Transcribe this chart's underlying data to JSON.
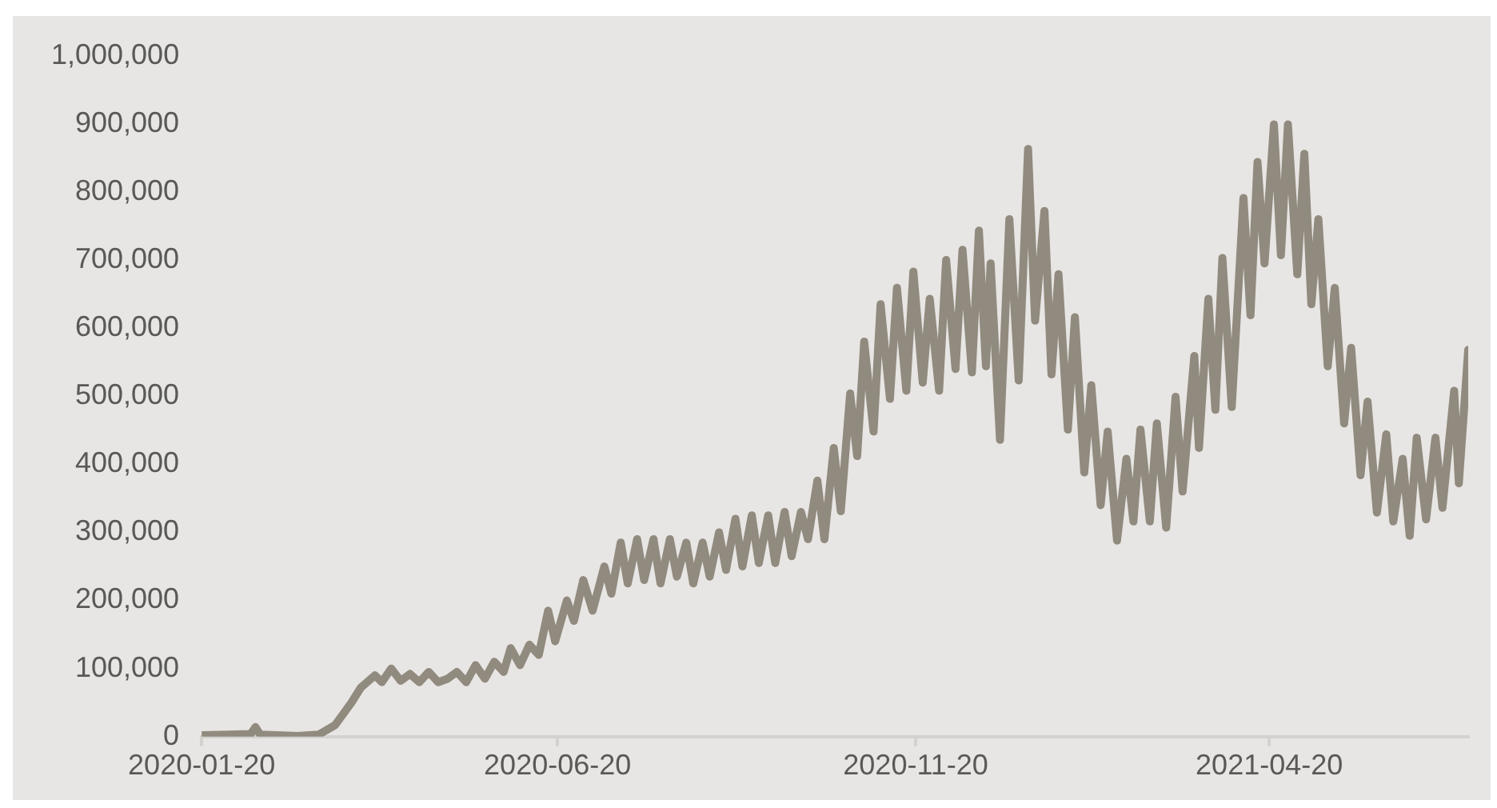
{
  "chart_data": {
    "type": "line",
    "color": "#918a7e",
    "marker": "none",
    "line_style": "solid",
    "legend": false,
    "grid": false,
    "xlim": [
      "2020-01-20",
      "2021-07-14"
    ],
    "xticks": [
      "2020-01-20",
      "2020-06-20",
      "2020-11-20",
      "2021-04-20"
    ],
    "ylim": [
      0,
      1000000
    ],
    "yticks": [
      {
        "value": 0,
        "label": "0"
      },
      {
        "value": 100000,
        "label": "100,000"
      },
      {
        "value": 200000,
        "label": "200,000"
      },
      {
        "value": 300000,
        "label": "300,000"
      },
      {
        "value": 400000,
        "label": "400,000"
      },
      {
        "value": 500000,
        "label": "500,000"
      },
      {
        "value": 600000,
        "label": "600,000"
      },
      {
        "value": 700000,
        "label": "700,000"
      },
      {
        "value": 800000,
        "label": "800,000"
      },
      {
        "value": 900000,
        "label": "900,000"
      },
      {
        "value": 1000000,
        "label": "1,000,000"
      }
    ],
    "x": [
      "2020-01-20",
      "2020-02-01",
      "2020-02-10",
      "2020-02-12",
      "2020-02-14",
      "2020-03-01",
      "2020-03-10",
      "2020-03-17",
      "2020-03-24",
      "2020-03-28",
      "2020-04-03",
      "2020-04-06",
      "2020-04-10",
      "2020-04-14",
      "2020-04-18",
      "2020-04-22",
      "2020-04-26",
      "2020-04-30",
      "2020-05-04",
      "2020-05-08",
      "2020-05-12",
      "2020-05-16",
      "2020-05-20",
      "2020-05-24",
      "2020-05-28",
      "2020-05-31",
      "2020-06-04",
      "2020-06-08",
      "2020-06-12",
      "2020-06-16",
      "2020-06-19",
      "2020-06-24",
      "2020-06-27",
      "2020-07-01",
      "2020-07-05",
      "2020-07-10",
      "2020-07-13",
      "2020-07-17",
      "2020-07-20",
      "2020-07-24",
      "2020-07-27",
      "2020-07-31",
      "2020-08-03",
      "2020-08-07",
      "2020-08-10",
      "2020-08-14",
      "2020-08-17",
      "2020-08-21",
      "2020-08-24",
      "2020-08-28",
      "2020-08-31",
      "2020-09-04",
      "2020-09-07",
      "2020-09-11",
      "2020-09-14",
      "2020-09-18",
      "2020-09-21",
      "2020-09-25",
      "2020-09-28",
      "2020-10-02",
      "2020-10-05",
      "2020-10-09",
      "2020-10-12",
      "2020-10-16",
      "2020-10-19",
      "2020-10-23",
      "2020-10-26",
      "2020-10-29",
      "2020-11-02",
      "2020-11-05",
      "2020-11-09",
      "2020-11-12",
      "2020-11-16",
      "2020-11-19",
      "2020-11-23",
      "2020-11-26",
      "2020-11-30",
      "2020-12-03",
      "2020-12-07",
      "2020-12-10",
      "2020-12-14",
      "2020-12-17",
      "2020-12-20",
      "2020-12-22",
      "2020-12-26",
      "2020-12-30",
      "2021-01-03",
      "2021-01-07",
      "2021-01-10",
      "2021-01-14",
      "2021-01-17",
      "2021-01-20",
      "2021-01-24",
      "2021-01-27",
      "2021-01-31",
      "2021-02-03",
      "2021-02-07",
      "2021-02-10",
      "2021-02-14",
      "2021-02-18",
      "2021-02-21",
      "2021-02-24",
      "2021-02-28",
      "2021-03-03",
      "2021-03-07",
      "2021-03-11",
      "2021-03-14",
      "2021-03-19",
      "2021-03-21",
      "2021-03-25",
      "2021-03-28",
      "2021-03-31",
      "2021-04-04",
      "2021-04-09",
      "2021-04-12",
      "2021-04-15",
      "2021-04-18",
      "2021-04-22",
      "2021-04-25",
      "2021-04-28",
      "2021-05-02",
      "2021-05-05",
      "2021-05-08",
      "2021-05-11",
      "2021-05-15",
      "2021-05-18",
      "2021-05-22",
      "2021-05-25",
      "2021-05-29",
      "2021-06-01",
      "2021-06-05",
      "2021-06-09",
      "2021-06-12",
      "2021-06-16",
      "2021-06-19",
      "2021-06-22",
      "2021-06-26",
      "2021-06-30",
      "2021-07-03",
      "2021-07-08",
      "2021-07-10",
      "2021-07-14"
    ],
    "values": [
      2000,
      3000,
      4000,
      14000,
      3000,
      1000,
      3000,
      17000,
      50000,
      72000,
      90000,
      80000,
      100000,
      82000,
      92000,
      80000,
      95000,
      80000,
      85000,
      95000,
      80000,
      105000,
      85000,
      110000,
      95000,
      130000,
      105000,
      135000,
      120000,
      185000,
      140000,
      200000,
      170000,
      230000,
      185000,
      250000,
      210000,
      285000,
      225000,
      290000,
      230000,
      290000,
      225000,
      290000,
      235000,
      285000,
      225000,
      285000,
      235000,
      300000,
      245000,
      320000,
      250000,
      325000,
      255000,
      325000,
      255000,
      330000,
      265000,
      330000,
      290000,
      376000,
      290000,
      424000,
      331000,
      504000,
      412000,
      580000,
      448000,
      635000,
      496000,
      659000,
      508000,
      683000,
      520000,
      643000,
      508000,
      700000,
      540000,
      715000,
      535000,
      743000,
      544000,
      695000,
      436000,
      760000,
      523000,
      863000,
      611000,
      772000,
      532000,
      679000,
      451000,
      616000,
      388000,
      516000,
      340000,
      448000,
      288000,
      408000,
      316000,
      451000,
      316000,
      460000,
      307000,
      499000,
      360000,
      559000,
      424000,
      643000,
      480000,
      703000,
      484000,
      791000,
      619000,
      844000,
      695000,
      899000,
      707000,
      899000,
      679000,
      856000,
      635000,
      760000,
      544000,
      659000,
      460000,
      571000,
      384000,
      492000,
      329000,
      444000,
      316000,
      408000,
      295000,
      439000,
      319000,
      439000,
      336000,
      508000,
      372000,
      568000
    ]
  }
}
